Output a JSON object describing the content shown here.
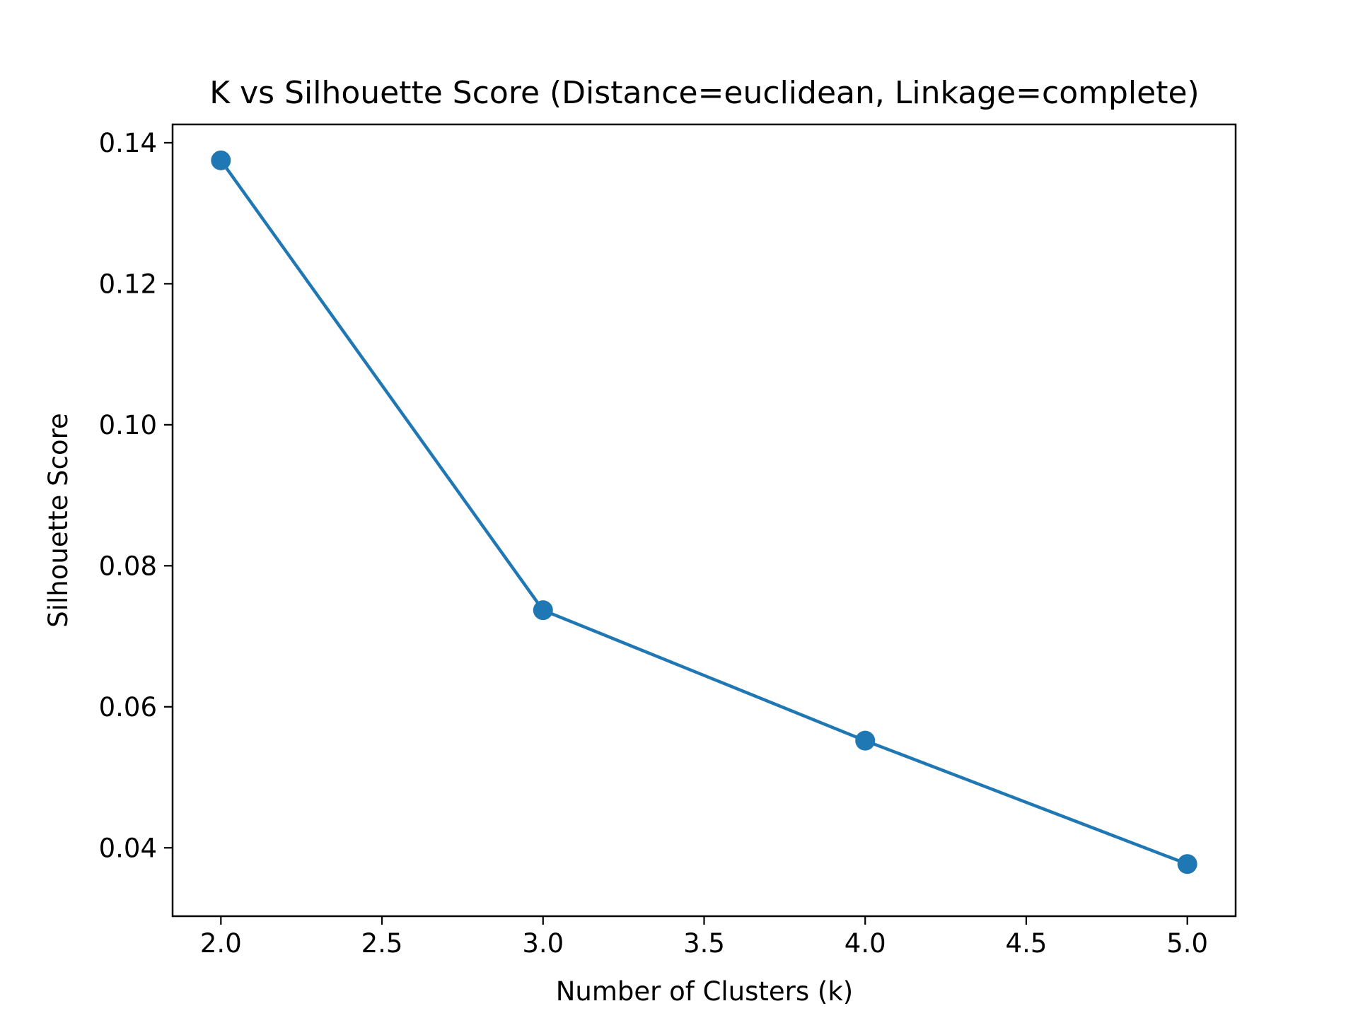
{
  "chart_data": {
    "type": "line",
    "title": "K vs Silhouette Score (Distance=euclidean, Linkage=complete)",
    "xlabel": "Number of Clusters (k)",
    "ylabel": "Silhouette Score",
    "x": [
      2,
      3,
      4,
      5
    ],
    "series": [
      {
        "values": [
          0.1375,
          0.0737,
          0.0552,
          0.0377
        ]
      }
    ],
    "xlim": [
      1.85,
      5.15
    ],
    "ylim": [
      0.0303,
      0.1426
    ],
    "xticks": [
      2.0,
      2.5,
      3.0,
      3.5,
      4.0,
      4.5,
      5.0
    ],
    "xtick_labels": [
      "2.0",
      "2.5",
      "3.0",
      "3.5",
      "4.0",
      "4.5",
      "5.0"
    ],
    "yticks": [
      0.04,
      0.06,
      0.08,
      0.1,
      0.12,
      0.14
    ],
    "ytick_labels": [
      "0.04",
      "0.06",
      "0.08",
      "0.10",
      "0.12",
      "0.14"
    ],
    "grid": false,
    "line_color": "#1f77b4",
    "marker": "circle"
  }
}
